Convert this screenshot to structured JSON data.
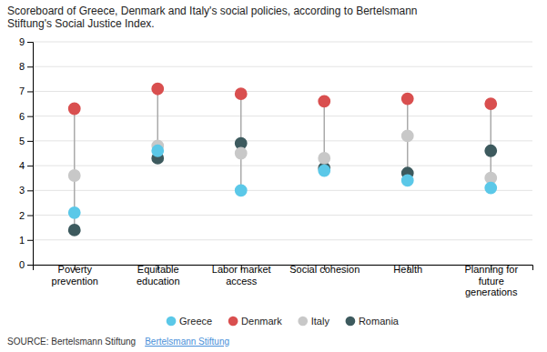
{
  "chart_data": {
    "type": "dot",
    "title": "Scoreboard of Greece, Denmark and Italy's social policies, according to Bertelsmann\nStiftung's Social Justice Index.",
    "categories": [
      "Poverty\nprevention",
      "Equitable\neducation",
      "Labor market\naccess",
      "Social cohesion",
      "Health",
      "Planning for\nfuture\ngenerations"
    ],
    "series": [
      {
        "name": "Greece",
        "color": "#5bc8e8",
        "values": [
          2.1,
          4.6,
          3.0,
          3.8,
          3.4,
          3.1
        ]
      },
      {
        "name": "Denmark",
        "color": "#d94f4f",
        "values": [
          6.3,
          7.1,
          6.9,
          6.6,
          6.7,
          6.5
        ]
      },
      {
        "name": "Italy",
        "color": "#c8c8c8",
        "values": [
          3.6,
          4.8,
          4.5,
          4.3,
          5.2,
          3.5
        ]
      },
      {
        "name": "Romania",
        "color": "#3d5a5e",
        "values": [
          1.4,
          4.3,
          4.9,
          3.9,
          3.7,
          4.6
        ]
      }
    ],
    "ylim": [
      0,
      9
    ],
    "yticks": [
      0,
      1,
      2,
      3,
      4,
      5,
      6,
      7,
      8,
      9
    ],
    "grid": true,
    "legend": "bottom",
    "marker": "circle",
    "source": "SOURCE: Bertelsmann Stiftung",
    "annotations": [
      {
        "text": "Bertelsmann Stiftung",
        "color": "#4a90d9"
      }
    ]
  }
}
